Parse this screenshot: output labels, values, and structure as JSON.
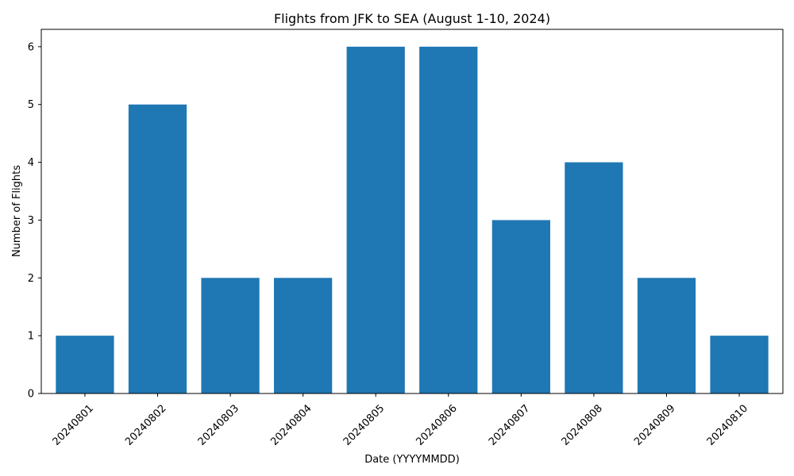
{
  "chart_data": {
    "type": "bar",
    "title": "Flights from JFK to SEA (August 1-10, 2024)",
    "xlabel": "Date (YYYYMMDD)",
    "ylabel": "Number of Flights",
    "categories": [
      "20240801",
      "20240802",
      "20240803",
      "20240804",
      "20240805",
      "20240806",
      "20240807",
      "20240808",
      "20240809",
      "20240810"
    ],
    "values": [
      1,
      5,
      2,
      2,
      6,
      6,
      3,
      4,
      2,
      1
    ],
    "ylim": [
      0,
      6.3
    ],
    "yticks": [
      0,
      1,
      2,
      3,
      4,
      5,
      6
    ],
    "bar_color": "#1f77b4",
    "grid": false,
    "legend": "none"
  }
}
